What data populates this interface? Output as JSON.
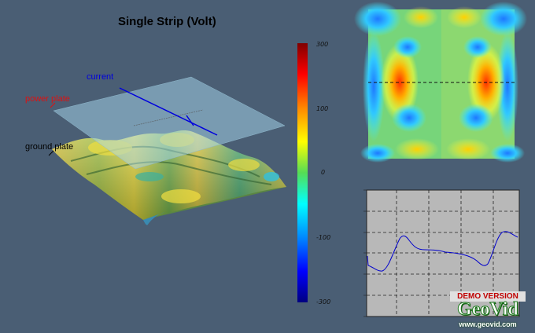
{
  "title": "Single Strip (Volt)",
  "labels": {
    "current": "current",
    "power_plate": "power plate",
    "ground_plate": "ground plate"
  },
  "colorbar": {
    "ticks": [
      "300",
      "100",
      "0",
      "-100",
      "-300"
    ]
  },
  "colors": {
    "background": "#4a5e74",
    "current_line": "#0000dd",
    "power_plate_label": "#dd1111",
    "ground_plate_label": "#000000",
    "plot_trace": "#0000cc"
  },
  "watermark": {
    "demo": "DEMO VERSION",
    "brand": "GeoVid",
    "url": "www.geovid.com"
  }
}
